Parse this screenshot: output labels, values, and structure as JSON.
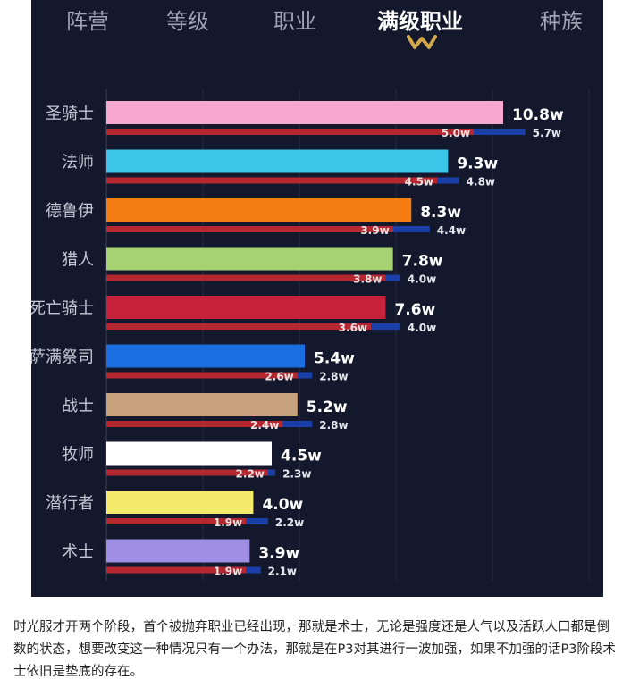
{
  "tabs": [
    {
      "label": "阵营",
      "active": false
    },
    {
      "label": "等级",
      "active": false
    },
    {
      "label": "职业",
      "active": false
    },
    {
      "label": "满级职业",
      "active": true
    },
    {
      "label": "种族",
      "active": false
    }
  ],
  "chart_data": {
    "type": "bar",
    "orientation": "horizontal",
    "categories": [
      "圣骑士",
      "法师",
      "德鲁伊",
      "猎人",
      "死亡骑士",
      "萨满祭司",
      "战士",
      "牧师",
      "潜行者",
      "术士"
    ],
    "series": [
      {
        "values": [
          10.8,
          9.3,
          8.3,
          7.8,
          7.6,
          5.4,
          5.2,
          4.5,
          4.0,
          3.9
        ],
        "labels": [
          "10.8w",
          "9.3w",
          "8.3w",
          "7.8w",
          "7.6w",
          "5.4w",
          "5.2w",
          "4.5w",
          "4.0w",
          "3.9w"
        ]
      },
      {
        "values": [
          5.0,
          4.5,
          3.9,
          3.8,
          3.6,
          2.6,
          2.4,
          2.2,
          1.9,
          1.9
        ],
        "labels": [
          "5.0w",
          "4.5w",
          "3.9w",
          "3.8w",
          "3.6w",
          "2.6w",
          "2.4w",
          "2.2w",
          "1.9w",
          "1.9w"
        ]
      },
      {
        "values": [
          5.7,
          4.8,
          4.4,
          4.0,
          4.0,
          2.8,
          2.8,
          2.3,
          2.2,
          2.1
        ],
        "labels": [
          "5.7w",
          "4.8w",
          "4.4w",
          "4.0w",
          "4.0w",
          "2.8w",
          "2.8w",
          "2.3w",
          "2.2w",
          "2.1w"
        ]
      }
    ],
    "colors": {
      "total_bars": [
        "#f7a8d0",
        "#3cc5e8",
        "#f57c10",
        "#a6d274",
        "#c8213c",
        "#1a6ee0",
        "#c8a27c",
        "#ffffff",
        "#f4ea6c",
        "#9f8fe4"
      ],
      "series_2": "#b52830",
      "series_3": "#1a3fa8"
    },
    "xlim": [
      0,
      10.8
    ],
    "grid": true,
    "legend": "none"
  },
  "article": {
    "text": "时光服才开两个阶段，首个被抛弃职业已经出现，那就是术士，无论是强度还是人气以及活跃人口都是倒数的状态，想要改变这一种情况只有一个办法，那就是在P3对其进行一波加强，如果不加强的话P3阶段术士依旧是垫底的存在。"
  }
}
